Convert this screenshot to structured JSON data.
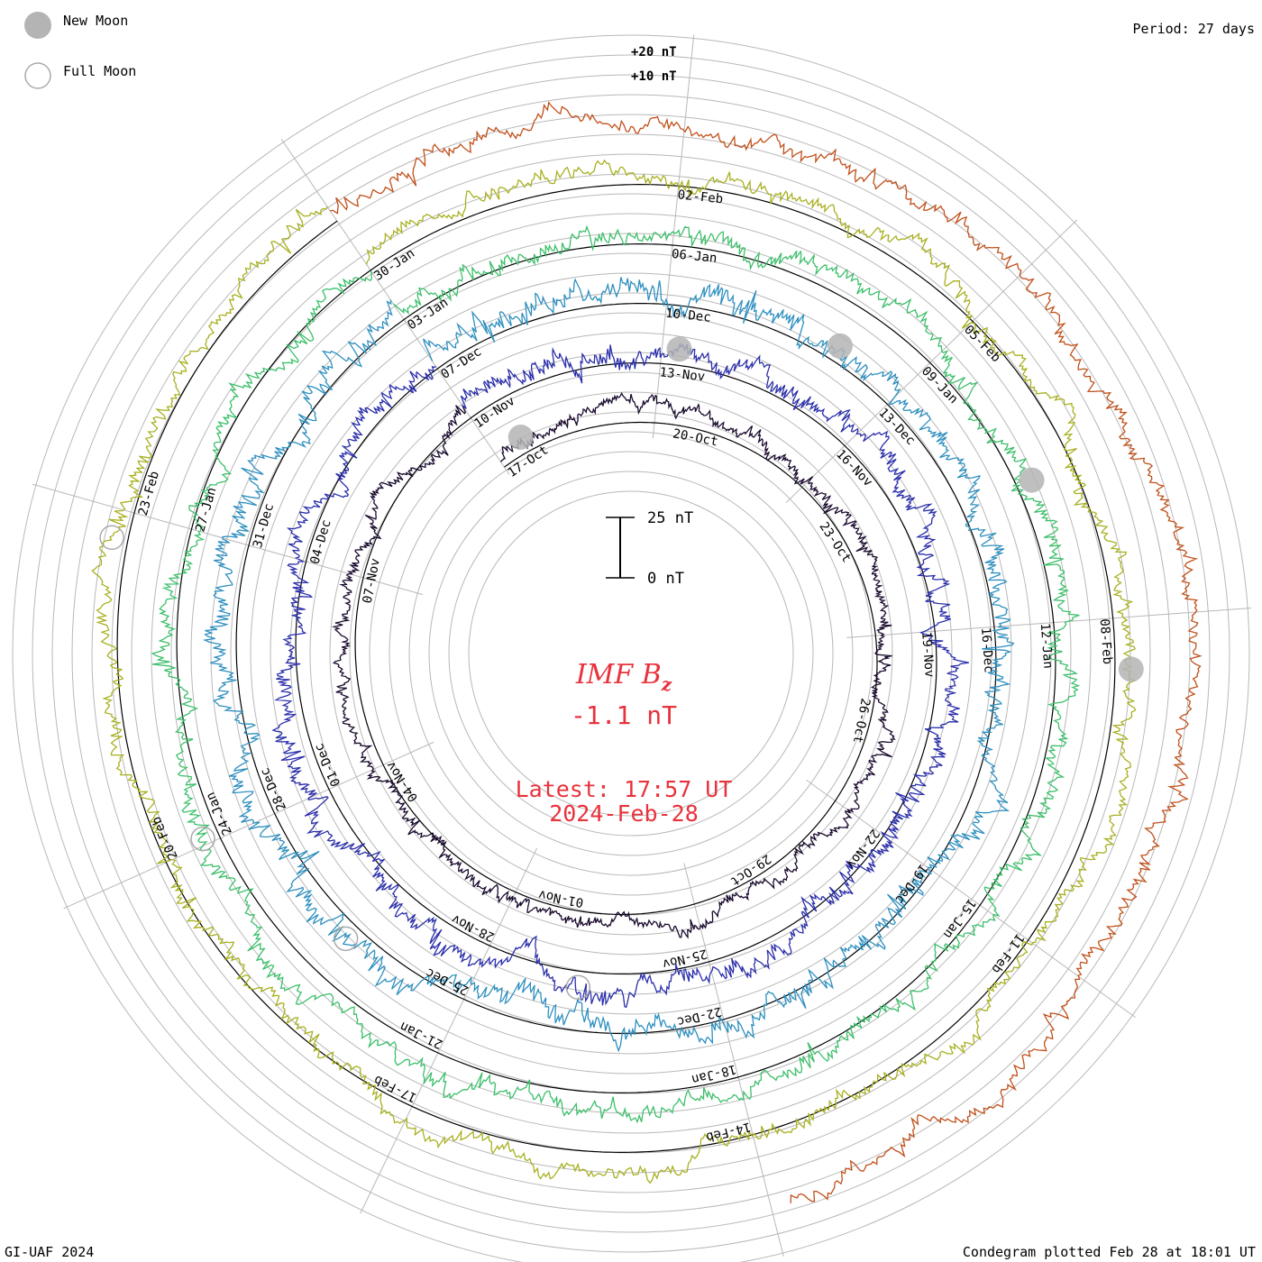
{
  "chart_data": {
    "type": "condegram",
    "title": "IMF B",
    "title_subscript": "z",
    "current_value": "-1.1 nT",
    "latest_label": "Latest: 17:57 UT",
    "latest_date": "2024-Feb-28",
    "period": "Period: 27 days",
    "scale_bar": {
      "top_label": "25 nT",
      "bottom_label": "0 nT",
      "span_nT": 25
    },
    "ring_scale_labels": [
      "+20 nT",
      "+10 nT"
    ],
    "legend": [
      {
        "name": "New Moon",
        "symbol": "filled"
      },
      {
        "name": "Full Moon",
        "symbol": "open"
      }
    ],
    "footer_left": "GI-UAF 2024",
    "footer_right": "Condegram plotted Feb 28 at 18:01 UT",
    "rotations": [
      {
        "index": 0,
        "color": "#1a0a2e",
        "amplitude_nT": 2.5,
        "date_labels": [
          "17-Oct",
          "20-Oct",
          "23-Oct",
          "26-Oct",
          "29-Oct",
          "01-Nov",
          "04-Nov",
          "07-Nov"
        ]
      },
      {
        "index": 1,
        "color": "#2b2faa",
        "amplitude_nT": 4.5,
        "date_labels": [
          "10-Nov",
          "13-Nov",
          "16-Nov",
          "19-Nov",
          "22-Nov",
          "25-Nov",
          "28-Nov",
          "01-Dec",
          "04-Dec"
        ]
      },
      {
        "index": 2,
        "color": "#2e8fbf",
        "amplitude_nT": 5.0,
        "date_labels": [
          "07-Dec",
          "10-Dec",
          "13-Dec",
          "16-Dec",
          "19-Dec",
          "22-Dec",
          "25-Dec",
          "28-Dec",
          "31-Dec"
        ]
      },
      {
        "index": 3,
        "color": "#3cbf6a",
        "amplitude_nT": 4.0,
        "date_labels": [
          "03-Jan",
          "06-Jan",
          "09-Jan",
          "12-Jan",
          "15-Jan",
          "18-Jan",
          "21-Jan",
          "24-Jan",
          "27-Jan"
        ]
      },
      {
        "index": 4,
        "color": "#a8b020",
        "amplitude_nT": 3.5,
        "date_labels": [
          "30-Jan",
          "02-Feb",
          "05-Feb",
          "08-Feb",
          "11-Feb",
          "14-Feb",
          "17-Feb",
          "20-Feb",
          "23-Feb"
        ]
      },
      {
        "index": 5,
        "color": "#c0501a",
        "amplitude_nT": 3.5,
        "date_labels": []
      }
    ],
    "moon_markers": [
      {
        "phase": "New Moon",
        "date": "14-Oct"
      },
      {
        "phase": "New Moon",
        "date": "13-Nov"
      },
      {
        "phase": "New Moon",
        "date": "12-Dec"
      },
      {
        "phase": "New Moon",
        "date": "11-Jan"
      },
      {
        "phase": "New Moon",
        "date": "09-Feb"
      },
      {
        "phase": "Full Moon",
        "date": "27-Nov"
      },
      {
        "phase": "Full Moon",
        "date": "26-Dec"
      },
      {
        "phase": "Full Moon",
        "date": "25-Jan"
      },
      {
        "phase": "Full Moon",
        "date": "24-Feb"
      }
    ]
  },
  "colors": {
    "title": "#e8323c",
    "grid": "#b8b8b8",
    "axis": "#000000"
  }
}
